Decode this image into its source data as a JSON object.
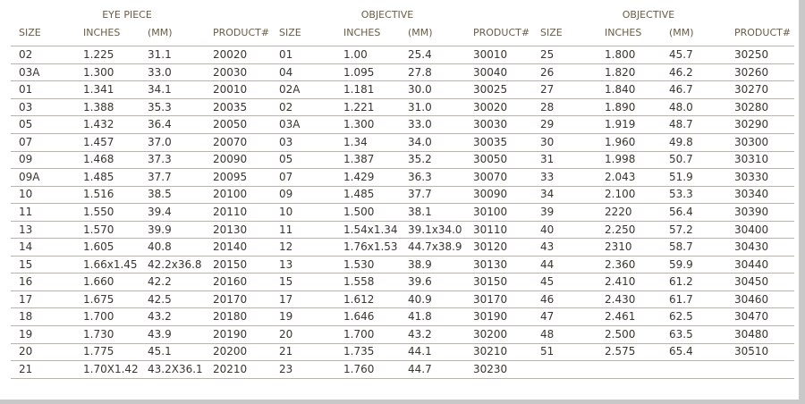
{
  "groups": [
    {
      "title": "EYE PIECE",
      "columns": [
        "SIZE",
        "INCHES",
        "(MM)",
        "PRODUCT#"
      ],
      "rows": [
        [
          "02",
          "1.225",
          "31.1",
          "20020"
        ],
        [
          "03A",
          "1.300",
          "33.0",
          "20030"
        ],
        [
          "01",
          "1.341",
          "34.1",
          "20010"
        ],
        [
          "03",
          "1.388",
          "35.3",
          "20035"
        ],
        [
          "05",
          "1.432",
          "36.4",
          "20050"
        ],
        [
          "07",
          "1.457",
          "37.0",
          "20070"
        ],
        [
          "09",
          "1.468",
          "37.3",
          "20090"
        ],
        [
          "09A",
          "1.485",
          "37.7",
          "20095"
        ],
        [
          "10",
          "1.516",
          "38.5",
          "20100"
        ],
        [
          "11",
          "1.550",
          "39.4",
          "20110"
        ],
        [
          "13",
          "1.570",
          "39.9",
          "20130"
        ],
        [
          "14",
          "1.605",
          "40.8",
          "20140"
        ],
        [
          "15",
          "1.66x1.45",
          "42.2x36.8",
          "20150"
        ],
        [
          "16",
          "1.660",
          "42.2",
          "20160"
        ],
        [
          "17",
          "1.675",
          "42.5",
          "20170"
        ],
        [
          "18",
          "1.700",
          "43.2",
          "20180"
        ],
        [
          "19",
          "1.730",
          "43.9",
          "20190"
        ],
        [
          "20",
          "1.775",
          "45.1",
          "20200"
        ],
        [
          "21",
          "1.70X1.42",
          "43.2X36.1",
          "20210"
        ]
      ]
    },
    {
      "title": "OBJECTIVE",
      "columns": [
        "SIZE",
        "INCHES",
        "(MM)",
        "PRODUCT#"
      ],
      "rows": [
        [
          "01",
          "1.00",
          "25.4",
          "30010"
        ],
        [
          "04",
          "1.095",
          "27.8",
          "30040"
        ],
        [
          "02A",
          "1.181",
          "30.0",
          "30025"
        ],
        [
          "02",
          "1.221",
          "31.0",
          "30020"
        ],
        [
          "03A",
          "1.300",
          "33.0",
          "30030"
        ],
        [
          "03",
          "1.34",
          "34.0",
          "30035"
        ],
        [
          "05",
          "1.387",
          "35.2",
          "30050"
        ],
        [
          "07",
          "1.429",
          "36.3",
          "30070"
        ],
        [
          "09",
          "1.485",
          "37.7",
          "30090"
        ],
        [
          "10",
          "1.500",
          "38.1",
          "30100"
        ],
        [
          "11",
          "1.54x1.34",
          "39.1x34.0",
          "30110"
        ],
        [
          "12",
          "1.76x1.53",
          "44.7x38.9",
          "30120"
        ],
        [
          "13",
          "1.530",
          "38.9",
          "30130"
        ],
        [
          "15",
          "1.558",
          "39.6",
          "30150"
        ],
        [
          "17",
          "1.612",
          "40.9",
          "30170"
        ],
        [
          "19",
          "1.646",
          "41.8",
          "30190"
        ],
        [
          "20",
          "1.700",
          "43.2",
          "30200"
        ],
        [
          "21",
          "1.735",
          "44.1",
          "30210"
        ],
        [
          "23",
          "1.760",
          "44.7",
          "30230"
        ]
      ]
    },
    {
      "title": "OBJECTIVE",
      "columns": [
        "SIZE",
        "INCHES",
        "(MM)",
        "PRODUCT#"
      ],
      "rows": [
        [
          "25",
          "1.800",
          "45.7",
          "30250"
        ],
        [
          "26",
          "1.820",
          "46.2",
          "30260"
        ],
        [
          "27",
          "1.840",
          "46.7",
          "30270"
        ],
        [
          "28",
          "1.890",
          "48.0",
          "30280"
        ],
        [
          "29",
          "1.919",
          "48.7",
          "30290"
        ],
        [
          "30",
          "1.960",
          "49.8",
          "30300"
        ],
        [
          "31",
          "1.998",
          "50.7",
          "30310"
        ],
        [
          "33",
          "2.043",
          "51.9",
          "30330"
        ],
        [
          "34",
          "2.100",
          "53.3",
          "30340"
        ],
        [
          "39",
          "2220",
          "56.4",
          "30390"
        ],
        [
          "40",
          "2.250",
          "57.2",
          "30400"
        ],
        [
          "43",
          "2310",
          "58.7",
          "30430"
        ],
        [
          "44",
          "2.360",
          "59.9",
          "30440"
        ],
        [
          "45",
          "2.410",
          "61.2",
          "30450"
        ],
        [
          "46",
          "2.430",
          "61.7",
          "30460"
        ],
        [
          "47",
          "2.461",
          "62.5",
          "30470"
        ],
        [
          "48",
          "2.500",
          "63.5",
          "30480"
        ],
        [
          "51",
          "2.575",
          "65.4",
          "30510"
        ]
      ]
    }
  ]
}
